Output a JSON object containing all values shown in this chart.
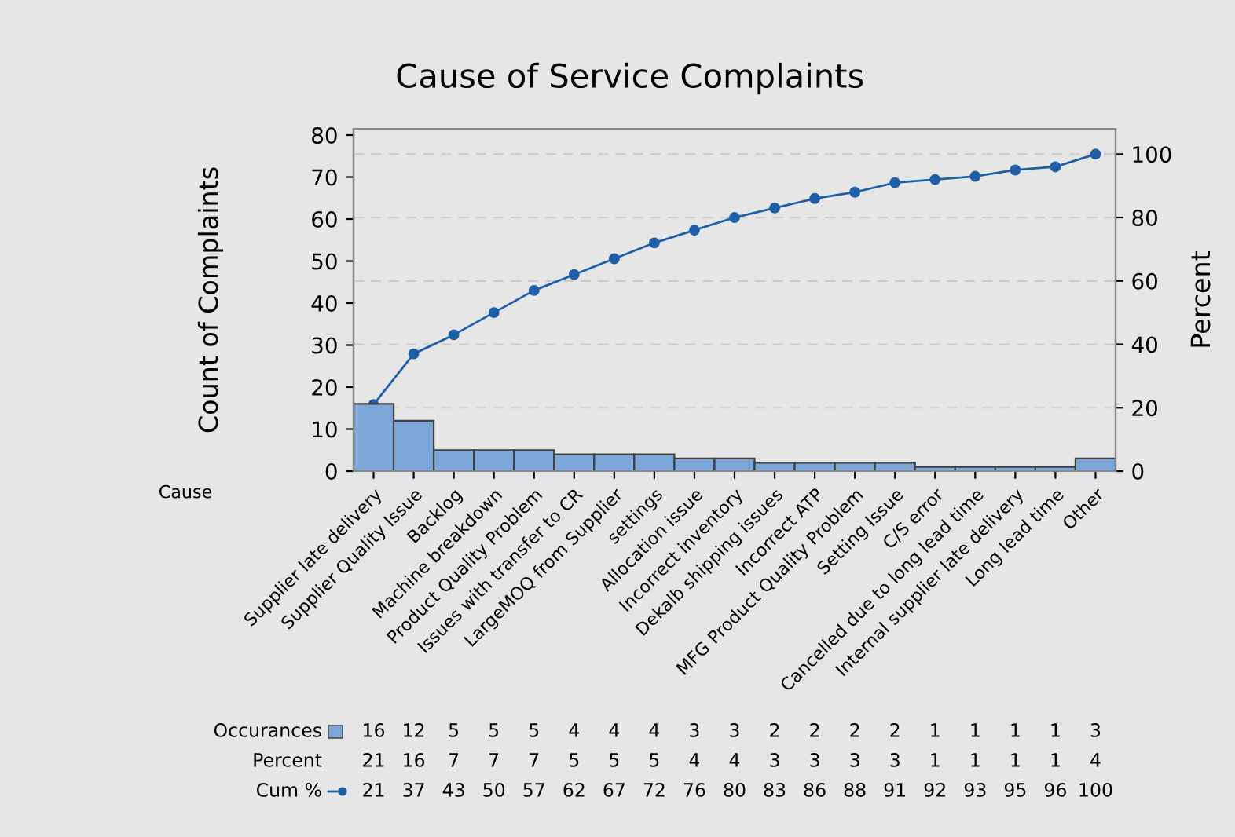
{
  "chart_data": {
    "type": "bar",
    "title": "Cause of Service Complaints",
    "xlabel": "Cause",
    "ylabel": "Count of Complaints",
    "y2label": "Percent",
    "categories": [
      "Supplier late delivery",
      "Supplier Quality Issue",
      "Backlog",
      "Machine breakdown",
      "Product Quality Problem",
      "Issues with transfer to CR",
      "LargeMOQ from Supplier",
      "settings",
      "Allocation issue",
      "Incorrect inventory",
      "Dekalb shipping issues",
      "Incorrect ATP",
      "MFG Product Quality Problem",
      "Setting Issue",
      "C/S error",
      "Cancelled due to long lead time",
      "Internal supplier late delivery",
      "Long lead time",
      "Other"
    ],
    "series": [
      {
        "name": "Occurances",
        "type": "bar",
        "color": "#7da7d9",
        "values": [
          16,
          12,
          5,
          5,
          5,
          4,
          4,
          4,
          3,
          3,
          2,
          2,
          2,
          2,
          1,
          1,
          1,
          1,
          3
        ]
      },
      {
        "name": "Cum %",
        "type": "line",
        "axis": "y2",
        "color": "#1f5fa8",
        "marker": "circle",
        "values": [
          21,
          37,
          43,
          50,
          57,
          62,
          67,
          72,
          76,
          80,
          83,
          86,
          88,
          91,
          92,
          93,
          95,
          96,
          100
        ]
      }
    ],
    "annotations": [
      "Percent",
      "21",
      "16",
      "7",
      "7",
      "7",
      "5",
      "5",
      "5",
      "4",
      "4",
      "3",
      "3",
      "3",
      "3",
      "1",
      "1",
      "1",
      "1",
      "4"
    ],
    "ylim": [
      0,
      81.5
    ],
    "yticks": [
      0,
      10,
      20,
      30,
      40,
      50,
      60,
      70,
      80
    ],
    "y2lim": [
      0,
      108
    ],
    "y2ticks": [
      0,
      20,
      40,
      60,
      80,
      100
    ],
    "grid": "y",
    "legend": "bottom left",
    "data_labels": true
  }
}
